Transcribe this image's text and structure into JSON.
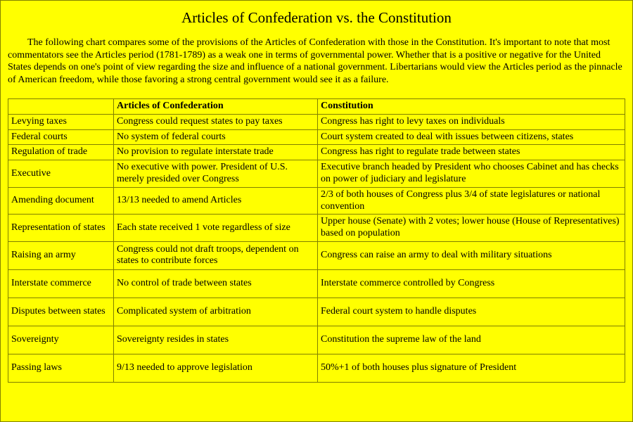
{
  "title": "Articles of Confederation vs. the Constitution",
  "intro": "The following chart compares some of the provisions of the Articles of Confederation with those in the Constitution. It's important to note that most commentators see the Articles period (1781-1789) as a weak one in terms of governmental power. Whether that is a positive or negative for the United States depends on one's point of view regarding the size and influence of a national government. Libertarians would view the Articles period as the pinnacle of American freedom, while those favoring a strong central government would see it as a failure.",
  "columns": [
    "",
    "Articles of Confederation",
    "Constitution"
  ],
  "rows": [
    {
      "topic": "Levying taxes",
      "articles": "Congress could request states to pay taxes",
      "constitution": "Congress has right to levy taxes on individuals",
      "tall": false
    },
    {
      "topic": "Federal courts",
      "articles": "No system of federal courts",
      "constitution": "Court system created to deal with issues between citizens, states",
      "tall": false
    },
    {
      "topic": "Regulation of trade",
      "articles": "No provision to regulate interstate trade",
      "constitution": "Congress has right to regulate trade between states",
      "tall": false
    },
    {
      "topic": "Executive",
      "articles": "No executive with power. President of U.S. merely presided over Congress",
      "constitution": "Executive branch headed by President who chooses Cabinet and has checks on power of judiciary and legislature",
      "tall": false
    },
    {
      "topic": "Amending document",
      "articles": "13/13 needed to amend Articles",
      "constitution": "2/3 of both houses of Congress plus 3/4 of state legislatures or national convention",
      "tall": false
    },
    {
      "topic": "Representation of states",
      "articles": "Each state received 1 vote regardless of size",
      "constitution": "Upper house (Senate) with 2 votes; lower house (House of Representatives) based on population",
      "tall": false
    },
    {
      "topic": "Raising an army",
      "articles": "Congress could not draft troops, dependent on states to contribute forces",
      "constitution": "Congress can raise an army to deal with military situations",
      "tall": true
    },
    {
      "topic": "Interstate commerce",
      "articles": "No control of trade between states",
      "constitution": "Interstate commerce controlled by Congress",
      "tall": true
    },
    {
      "topic": "Disputes between states",
      "articles": "Complicated system of arbitration",
      "constitution": "Federal court system to handle disputes",
      "tall": true
    },
    {
      "topic": "Sovereignty",
      "articles": "Sovereignty resides in states",
      "constitution": "Constitution the supreme law of the land",
      "tall": true
    },
    {
      "topic": "Passing laws",
      "articles": "9/13 needed to approve legislation",
      "constitution": "50%+1 of both houses plus signature of President",
      "tall": true
    }
  ],
  "colors": {
    "background": "#ffff00",
    "border": "#808000",
    "text": "#000000"
  }
}
